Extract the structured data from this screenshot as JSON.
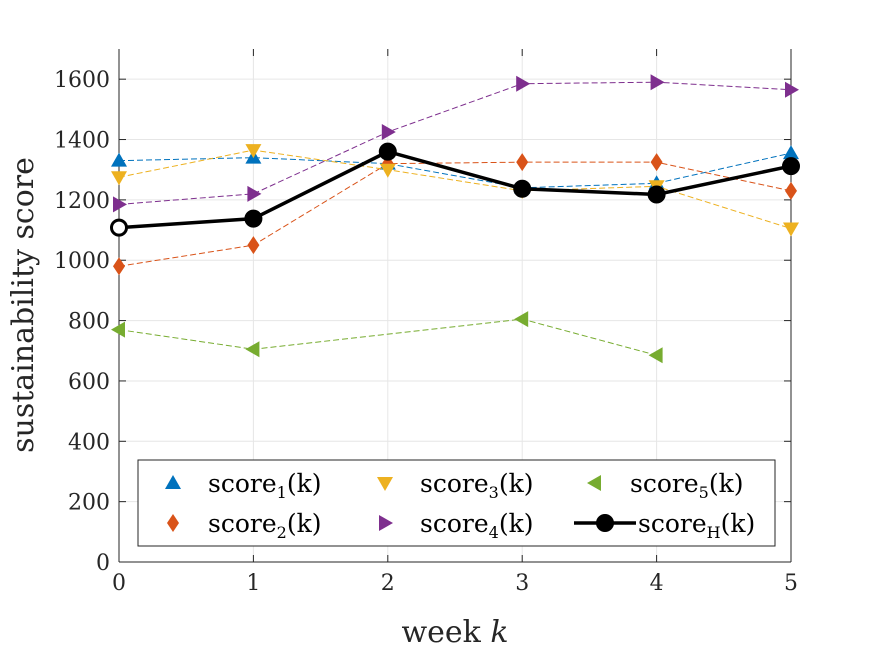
{
  "chart_data": {
    "type": "line",
    "title": "",
    "xlabel": "week",
    "xlabel_var": "k",
    "ylabel": "sustainability score",
    "xlim": [
      0,
      5
    ],
    "ylim": [
      0,
      1700
    ],
    "xticks": [
      0,
      1,
      2,
      3,
      4,
      5
    ],
    "xtick_labels": [
      "0",
      "1",
      "2",
      "3",
      "4",
      "5"
    ],
    "yticks": [
      0,
      200,
      400,
      600,
      800,
      1000,
      1200,
      1400,
      1600
    ],
    "ytick_labels": [
      "0",
      "200",
      "400",
      "600",
      "800",
      "1000",
      "1200",
      "1400",
      "1600"
    ],
    "grid": true,
    "legend_position": "bottom",
    "series": [
      {
        "name": "score1(k)",
        "base": "score",
        "sub": "1",
        "arg": "(k)",
        "color": "#0072BD",
        "marker": "triangle-up",
        "line": "dashed",
        "x": [
          0,
          1,
          2,
          3,
          4,
          5
        ],
        "values": [
          1330,
          1340,
          1320,
          1240,
          1255,
          1355
        ]
      },
      {
        "name": "score2(k)",
        "base": "score",
        "sub": "2",
        "arg": "(k)",
        "color": "#D95319",
        "marker": "diamond",
        "line": "dashed",
        "x": [
          0,
          1,
          2,
          3,
          4,
          5
        ],
        "values": [
          980,
          1050,
          1320,
          1325,
          1325,
          1230
        ]
      },
      {
        "name": "score3(k)",
        "base": "score",
        "sub": "3",
        "arg": "(k)",
        "color": "#EDB120",
        "marker": "triangle-down",
        "line": "dashed",
        "x": [
          0,
          1,
          2,
          3,
          4,
          5
        ],
        "values": [
          1275,
          1365,
          1300,
          1230,
          1245,
          1105
        ]
      },
      {
        "name": "score4(k)",
        "base": "score",
        "sub": "4",
        "arg": "(k)",
        "color": "#7E2F8E",
        "marker": "triangle-right",
        "line": "dashed",
        "x": [
          0,
          1,
          2,
          3,
          4,
          5
        ],
        "values": [
          1185,
          1220,
          1425,
          1585,
          1590,
          1565
        ]
      },
      {
        "name": "score5(k)",
        "base": "score",
        "sub": "5",
        "arg": "(k)",
        "color": "#77AC30",
        "marker": "triangle-left",
        "line": "dashed",
        "x": [
          0,
          1,
          3,
          4
        ],
        "values": [
          770,
          705,
          805,
          685
        ]
      },
      {
        "name": "scoreH(k)",
        "base": "score",
        "sub": "H",
        "arg": "(k)",
        "color": "#000000",
        "marker": "circle",
        "line": "solid",
        "x": [
          0,
          1,
          2,
          3,
          4,
          5
        ],
        "values": [
          1108,
          1138,
          1360,
          1237,
          1218,
          1312
        ]
      }
    ]
  }
}
